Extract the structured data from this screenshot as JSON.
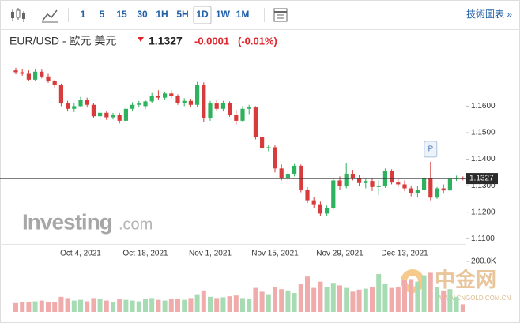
{
  "toolbar": {
    "intervals": [
      "1",
      "5",
      "15",
      "30",
      "1H",
      "5H",
      "1D",
      "1W",
      "1M"
    ],
    "selected_interval": 6,
    "link": "技術圖表 »"
  },
  "header": {
    "pair": "EUR/USD - 歐元 美元",
    "change_pct": "(-0.01%)"
  },
  "watermark": {
    "brand": "Investing",
    "suffix": ".com",
    "logo": "中金网",
    "logo_url": "WWW.CNGOLD.COM.CN"
  },
  "chart_data": {
    "type": "candlestick",
    "last_price": 1.1327,
    "change": -0.0001,
    "marker_label": "P",
    "marker_index": 64,
    "up_color": "#2fb25f",
    "down_color": "#d83b3b",
    "volume_up_color": "#a6dbb4",
    "volume_down_color": "#f0abab",
    "categories": [
      null,
      null,
      null,
      null,
      null,
      null,
      null,
      null,
      null,
      null,
      "Oct 4, 2021",
      null,
      null,
      null,
      null,
      null,
      null,
      null,
      null,
      null,
      "Oct 18, 2021",
      null,
      null,
      null,
      null,
      null,
      null,
      null,
      null,
      null,
      "Nov 1, 2021",
      null,
      null,
      null,
      null,
      null,
      null,
      null,
      null,
      null,
      "Nov 15, 2021",
      null,
      null,
      null,
      null,
      null,
      null,
      null,
      null,
      null,
      "Nov 29, 2021",
      null,
      null,
      null,
      null,
      null,
      null,
      null,
      null,
      null,
      "Dec 13, 2021",
      null,
      null,
      null,
      null,
      null,
      null,
      null,
      null,
      null
    ],
    "open": [
      1.1735,
      1.1728,
      1.1722,
      1.17,
      1.173,
      1.1712,
      1.1695,
      1.168,
      1.161,
      1.159,
      1.16,
      1.1625,
      1.1605,
      1.1562,
      1.1575,
      1.1558,
      1.1568,
      1.1545,
      1.159,
      1.1605,
      1.16,
      1.1618,
      1.164,
      1.1632,
      1.1648,
      1.1638,
      1.1612,
      1.162,
      1.1605,
      1.168,
      1.1555,
      1.161,
      1.159,
      1.1612,
      1.1568,
      1.1545,
      1.159,
      1.1595,
      1.1485,
      1.1442,
      1.1445,
      1.1365,
      1.133,
      1.1345,
      1.1375,
      1.1285,
      1.1245,
      1.123,
      1.1195,
      1.1215,
      1.132,
      1.1298,
      1.1345,
      1.133,
      1.131,
      1.1318,
      1.1295,
      1.13,
      1.1355,
      1.1312,
      1.1305,
      1.129,
      1.1272,
      1.1285,
      1.133,
      1.1255,
      1.129,
      1.1282,
      1.1325,
      1.1328
    ],
    "high": [
      1.1745,
      1.174,
      1.1735,
      1.174,
      1.1738,
      1.1722,
      1.17,
      1.1685,
      1.162,
      1.1612,
      1.1635,
      1.1632,
      1.1612,
      1.1585,
      1.158,
      1.1575,
      1.1575,
      1.16,
      1.1615,
      1.162,
      1.1625,
      1.165,
      1.166,
      1.1655,
      1.166,
      1.1645,
      1.163,
      1.1628,
      1.1692,
      1.169,
      1.162,
      1.1625,
      1.162,
      1.1618,
      1.1585,
      1.16,
      1.1605,
      1.16,
      1.1495,
      1.1455,
      1.1452,
      1.138,
      1.1355,
      1.1382,
      1.138,
      1.1295,
      1.1258,
      1.124,
      1.1225,
      1.133,
      1.1335,
      1.1385,
      1.136,
      1.134,
      1.1325,
      1.133,
      1.132,
      1.1365,
      1.1362,
      1.1325,
      1.132,
      1.13,
      1.1298,
      1.1335,
      1.139,
      1.1295,
      1.1305,
      1.1335,
      1.1338,
      1.1335
    ],
    "low": [
      1.172,
      1.1715,
      1.1695,
      1.1695,
      1.1705,
      1.1688,
      1.167,
      1.16,
      1.158,
      1.1578,
      1.1595,
      1.1595,
      1.1555,
      1.155,
      1.1548,
      1.155,
      1.1535,
      1.154,
      1.158,
      1.1595,
      1.159,
      1.1612,
      1.1625,
      1.1625,
      1.163,
      1.1605,
      1.16,
      1.1595,
      1.1598,
      1.154,
      1.1545,
      1.158,
      1.158,
      1.156,
      1.153,
      1.154,
      1.157,
      1.1475,
      1.1435,
      1.143,
      1.135,
      1.132,
      1.1315,
      1.1335,
      1.1275,
      1.1235,
      1.1215,
      1.1185,
      1.1185,
      1.121,
      1.1285,
      1.129,
      1.132,
      1.13,
      1.129,
      1.128,
      1.1265,
      1.1292,
      1.1305,
      1.1295,
      1.128,
      1.126,
      1.1255,
      1.1275,
      1.1245,
      1.125,
      1.127,
      1.1275,
      1.1318,
      1.132
    ],
    "close": [
      1.1728,
      1.1722,
      1.17,
      1.173,
      1.1712,
      1.1695,
      1.168,
      1.161,
      1.159,
      1.16,
      1.1625,
      1.1605,
      1.1562,
      1.1575,
      1.1558,
      1.1568,
      1.1545,
      1.159,
      1.1605,
      1.161,
      1.1618,
      1.164,
      1.1632,
      1.1648,
      1.1638,
      1.1612,
      1.162,
      1.1605,
      1.168,
      1.1555,
      1.161,
      1.159,
      1.1612,
      1.1568,
      1.1545,
      1.159,
      1.1595,
      1.1485,
      1.1442,
      1.1445,
      1.1365,
      1.133,
      1.1345,
      1.1375,
      1.1285,
      1.1245,
      1.123,
      1.1195,
      1.1215,
      1.132,
      1.1298,
      1.1345,
      1.133,
      1.131,
      1.1318,
      1.1295,
      1.13,
      1.1355,
      1.1312,
      1.1305,
      1.129,
      1.1272,
      1.1285,
      1.133,
      1.1255,
      1.129,
      1.1282,
      1.1325,
      1.1328,
      1.1327
    ],
    "volume": [
      35000,
      40000,
      38000,
      42000,
      45000,
      40000,
      38000,
      60000,
      55000,
      45000,
      48000,
      42000,
      55000,
      50000,
      45000,
      40000,
      52000,
      48000,
      45000,
      42000,
      50000,
      55000,
      48000,
      45000,
      50000,
      52000,
      48000,
      55000,
      70000,
      85000,
      60000,
      55000,
      58000,
      62000,
      65000,
      55000,
      50000,
      95000,
      80000,
      70000,
      100000,
      90000,
      85000,
      75000,
      110000,
      140000,
      95000,
      120000,
      100000,
      115000,
      105000,
      95000,
      80000,
      88000,
      92000,
      100000,
      150000,
      110000,
      95000,
      100000,
      125000,
      130000,
      120000,
      145000,
      155000,
      100000,
      85000,
      90000,
      60000,
      30000
    ],
    "ylim": [
      1.108,
      1.178
    ],
    "yticks": [
      {
        "value": 1.11,
        "label": "1.1100"
      },
      {
        "value": 1.12,
        "label": "1.1200"
      },
      {
        "value": 1.13,
        "label": "1.1300"
      },
      {
        "value": 1.14,
        "label": "1.1400"
      },
      {
        "value": 1.15,
        "label": "1.1500"
      },
      {
        "value": 1.16,
        "label": "1.1600"
      }
    ],
    "volume_ylim": [
      0,
      200000
    ],
    "volume_ticks": [
      {
        "value": 200000,
        "label": "200.0K"
      }
    ]
  }
}
